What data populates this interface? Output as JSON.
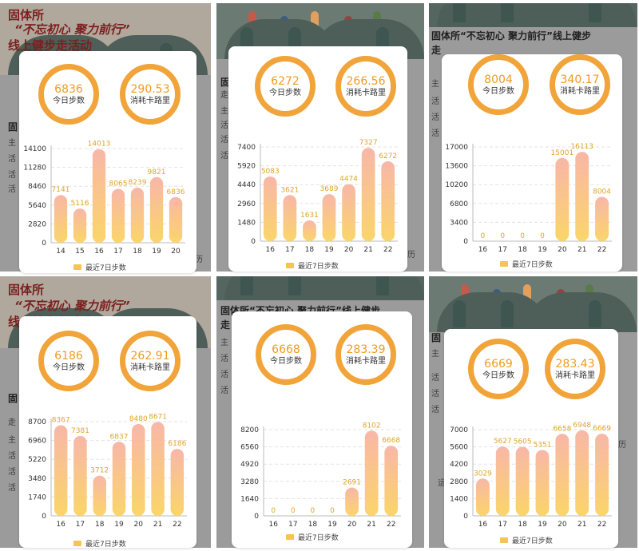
{
  "colors": {
    "ring": "#f1a43a",
    "number": "#f19a1e",
    "bar_top": "#f8b7a8",
    "bar_bottom": "#fbd56a",
    "grid": "#e3e3e3",
    "legend_swatch": "#f6c455"
  },
  "panels": [
    {
      "bg": {
        "title": "固体所",
        "subtitle": "“不忘初心 聚力前行”",
        "line3": "线上健步走活动",
        "headline": "固",
        "side_texts": [
          "主",
          "活",
          "活",
          "活"
        ],
        "mini_text": "持",
        "right_edge": "历"
      },
      "steps": "6836",
      "steps_label": "今日步数",
      "kcal": "290.53",
      "kcal_label": "消耗卡路里",
      "chart_data": {
        "type": "bar",
        "categories": [
          "14",
          "15",
          "16",
          "17",
          "18",
          "19",
          "20"
        ],
        "values": [
          7141,
          5116,
          14013,
          8065,
          8239,
          9821,
          6836
        ],
        "ylim": [
          0,
          14100
        ],
        "yticks": [
          0,
          2820,
          5640,
          8460,
          11280,
          14100
        ],
        "legend": "最近7日步数"
      }
    },
    {
      "bg": {
        "title": "",
        "subtitle": "",
        "line3": "",
        "headline": "固",
        "side_texts": [
          "走",
          "主",
          "活",
          "活",
          "活"
        ],
        "mini_text": "报",
        "right_edge": "历"
      },
      "steps": "6272",
      "steps_label": "今日步数",
      "kcal": "266.56",
      "kcal_label": "消耗卡路里",
      "chart_data": {
        "type": "bar",
        "categories": [
          "16",
          "17",
          "18",
          "19",
          "20",
          "21",
          "22"
        ],
        "values": [
          5083,
          3621,
          1631,
          3689,
          4474,
          7327,
          6272
        ],
        "ylim": [
          0,
          7400
        ],
        "yticks": [
          0,
          1480,
          2960,
          4440,
          5920,
          7400
        ],
        "legend": "最近7日步数"
      }
    },
    {
      "bg": {
        "title": "",
        "subtitle": "",
        "line3": "",
        "headline": "固体所“不忘初心 聚力前行”线上健步",
        "headline2": "走",
        "side_texts": [
          "主",
          "活",
          "活",
          "活"
        ],
        "mini_text": "",
        "right_edge": ""
      },
      "steps": "8004",
      "steps_label": "今日步数",
      "kcal": "340.17",
      "kcal_label": "消耗卡路里",
      "chart_data": {
        "type": "bar",
        "categories": [
          "16",
          "17",
          "18",
          "19",
          "20",
          "21",
          "22"
        ],
        "values": [
          0,
          0,
          0,
          0,
          15001,
          16113,
          8004
        ],
        "ylim": [
          0,
          17000
        ],
        "yticks": [
          0,
          3400,
          6800,
          10200,
          13600,
          17000
        ],
        "legend": "最近7日步数"
      }
    },
    {
      "bg": {
        "title": "固体所",
        "subtitle": "“不忘初心 聚力前行”",
        "line3": "线上健步走活动",
        "headline": "固",
        "side_texts": [
          "走",
          "主",
          "活",
          "活",
          "活"
        ],
        "mini_text": "",
        "right_edge": ""
      },
      "steps": "6186",
      "steps_label": "今日步数",
      "kcal": "262.91",
      "kcal_label": "消耗卡路里",
      "chart_data": {
        "type": "bar",
        "categories": [
          "16",
          "17",
          "18",
          "19",
          "20",
          "21",
          "22"
        ],
        "values": [
          8367,
          7381,
          3712,
          6837,
          8480,
          8671,
          6186
        ],
        "ylim": [
          0,
          8700
        ],
        "yticks": [
          0,
          1740,
          3480,
          5220,
          6960,
          8700
        ],
        "legend": "最近7日步数"
      }
    },
    {
      "bg": {
        "title": "",
        "subtitle": "",
        "line3": "",
        "headline": "固体所“不忘初心 聚力前行”线上健步",
        "headline2": "走",
        "side_texts": [
          "主",
          "活",
          "活",
          "活"
        ],
        "mini_text": "",
        "right_edge": ""
      },
      "steps": "6668",
      "steps_label": "今日步数",
      "kcal": "283.39",
      "kcal_label": "消耗卡路里",
      "chart_data": {
        "type": "bar",
        "categories": [
          "16",
          "17",
          "18",
          "19",
          "20",
          "21",
          "22"
        ],
        "values": [
          0,
          0,
          0,
          0,
          2691,
          8102,
          6668
        ],
        "ylim": [
          0,
          8200
        ],
        "yticks": [
          0,
          1640,
          3280,
          4920,
          6560,
          8200
        ],
        "legend": "最近7日步数"
      }
    },
    {
      "bg": {
        "title": "",
        "subtitle": "",
        "line3": "",
        "headline": "固",
        "side_texts": [
          "主",
          "活",
          "活",
          "活"
        ],
        "mini_text": "报",
        "mini_text2": "运",
        "right_edge": "历"
      },
      "steps": "6669",
      "steps_label": "今日步数",
      "kcal": "283.43",
      "kcal_label": "消耗卡路里",
      "chart_data": {
        "type": "bar",
        "categories": [
          "16",
          "17",
          "18",
          "19",
          "20",
          "21",
          "22"
        ],
        "values": [
          3029,
          5627,
          5605,
          5351,
          6658,
          6948,
          6669
        ],
        "ylim": [
          0,
          7000
        ],
        "yticks": [
          0,
          1400,
          2800,
          4200,
          5600,
          7000
        ],
        "legend": "最近7日步数"
      }
    }
  ]
}
